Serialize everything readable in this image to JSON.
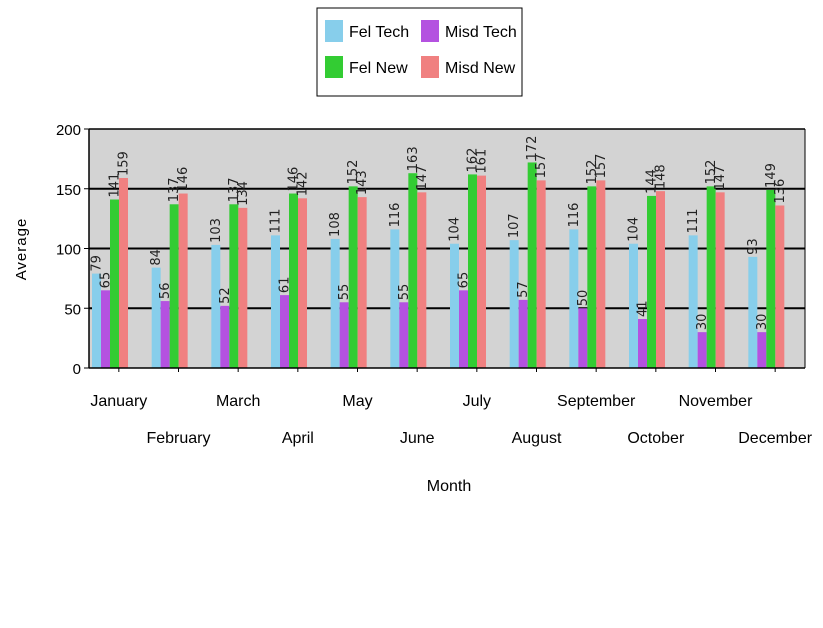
{
  "chart_data": {
    "type": "bar",
    "xlabel": "Month",
    "ylabel": "Average",
    "ylim": [
      0,
      200
    ],
    "yticks": [
      0,
      50,
      100,
      150,
      200
    ],
    "grid": true,
    "legend_position": "top-center",
    "categories": [
      "January",
      "February",
      "March",
      "April",
      "May",
      "June",
      "July",
      "August",
      "September",
      "October",
      "November",
      "December"
    ],
    "series": [
      {
        "name": "Fel Tech",
        "color": "#87ceeb",
        "values": [
          79,
          84,
          103,
          111,
          108,
          116,
          104,
          107,
          116,
          104,
          111,
          93
        ]
      },
      {
        "name": "Misd Tech",
        "color": "#b452e0",
        "values": [
          65,
          56,
          52,
          61,
          55,
          55,
          65,
          57,
          50,
          41,
          30,
          30
        ]
      },
      {
        "name": "Fel New",
        "color": "#33cc33",
        "values": [
          141,
          137,
          137,
          146,
          152,
          163,
          162,
          172,
          152,
          144,
          152,
          149
        ]
      },
      {
        "name": "Misd New",
        "color": "#f08080",
        "values": [
          159,
          146,
          134,
          142,
          143,
          147,
          161,
          157,
          157,
          148,
          147,
          136
        ]
      }
    ]
  }
}
